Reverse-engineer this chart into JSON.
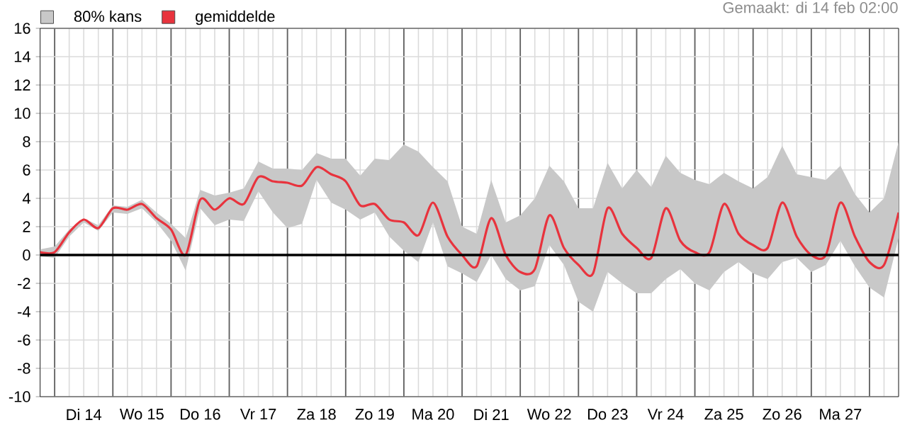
{
  "chart_data": {
    "type": "line",
    "annotations": [
      "Gemaakt: di 14 feb 02:00"
    ],
    "categories": [
      null,
      null,
      null,
      "Di 14",
      null,
      null,
      null,
      "Wo 15",
      null,
      null,
      null,
      "Do 16",
      null,
      null,
      null,
      "Vr 17",
      null,
      null,
      null,
      "Za 18",
      null,
      null,
      null,
      "Zo 19",
      null,
      null,
      null,
      "Ma 20",
      null,
      null,
      null,
      "Di 21",
      null,
      null,
      null,
      "Wo 22",
      null,
      null,
      null,
      "Do 23",
      null,
      null,
      null,
      "Vr 24",
      null,
      null,
      null,
      "Za 25",
      null,
      null,
      null,
      "Zo 26",
      null,
      null,
      null,
      "Ma 27",
      null,
      null,
      null,
      null
    ],
    "ylim": [
      -10,
      16
    ],
    "yticks": [
      -10,
      -8,
      -6,
      -4,
      -2,
      0,
      2,
      4,
      6,
      8,
      10,
      12,
      14,
      16
    ],
    "grid": true,
    "legend": "top left",
    "marker": "none",
    "ref_lines": [
      {
        "axis": "y",
        "value": 0,
        "color": "#000000"
      }
    ],
    "series": [
      {
        "name": "80% kans",
        "type": "area",
        "color": "#c8c8c8",
        "values": [
          null,
          null,
          null,
          null,
          null,
          null,
          null,
          null,
          null,
          null,
          null,
          null,
          null,
          null,
          null,
          null,
          null,
          null,
          null,
          null,
          null,
          null,
          null,
          null,
          null,
          null,
          null,
          null,
          null,
          null,
          null,
          null,
          null,
          null,
          null,
          null,
          null,
          null,
          null,
          null,
          null,
          null,
          null,
          null,
          null,
          null,
          null,
          null,
          null,
          null,
          null,
          null,
          null,
          null,
          null,
          null,
          null,
          null,
          null,
          null
        ],
        "lower": [
          -0.1,
          -0.2,
          1.3,
          2.3,
          1.7,
          3.0,
          2.9,
          3.3,
          2.3,
          1.0,
          -1.1,
          3.3,
          2.1,
          2.5,
          2.4,
          4.5,
          3.0,
          1.9,
          2.2,
          5.3,
          3.7,
          3.2,
          2.5,
          3.0,
          1.3,
          0.3,
          -0.5,
          2.3,
          -0.8,
          -1.3,
          -1.9,
          0.0,
          -1.7,
          -2.5,
          -2.2,
          0.7,
          -0.7,
          -3.3,
          -4.0,
          -1.2,
          -2.0,
          -2.7,
          -2.7,
          -1.7,
          -1.0,
          -2.0,
          -2.5,
          -1.2,
          -0.5,
          -1.3,
          -1.7,
          -0.5,
          -0.2,
          -1.2,
          -0.7,
          1.0,
          -0.8,
          -2.3,
          -3.0,
          1.2
        ],
        "upper": [
          0.4,
          0.6,
          1.8,
          2.6,
          2.1,
          3.5,
          3.4,
          3.9,
          3.0,
          2.2,
          1.2,
          4.6,
          4.2,
          4.4,
          4.7,
          6.6,
          6.1,
          6.1,
          6.0,
          7.2,
          6.8,
          6.8,
          5.6,
          6.8,
          6.7,
          7.8,
          7.3,
          6.2,
          5.2,
          2.0,
          1.5,
          5.3,
          2.3,
          2.8,
          4.0,
          6.3,
          5.2,
          3.3,
          3.3,
          6.5,
          4.7,
          6.0,
          4.8,
          7.0,
          5.8,
          5.3,
          5.0,
          5.8,
          5.2,
          4.7,
          5.5,
          7.7,
          5.7,
          5.5,
          5.3,
          6.3,
          4.3,
          3.0,
          4.0,
          8.0
        ]
      },
      {
        "name": "gemiddelde",
        "color": "#e8333d",
        "values": [
          0.2,
          0.2,
          1.6,
          2.5,
          1.9,
          3.3,
          3.2,
          3.6,
          2.6,
          1.8,
          0.0,
          3.9,
          3.2,
          4.0,
          3.6,
          5.5,
          5.2,
          5.1,
          4.9,
          6.2,
          5.7,
          5.2,
          3.5,
          3.6,
          2.5,
          2.3,
          1.4,
          3.7,
          1.3,
          0.0,
          -0.8,
          2.6,
          0.0,
          -1.2,
          -1.0,
          2.8,
          0.5,
          -0.7,
          -1.3,
          3.3,
          1.5,
          0.5,
          -0.2,
          3.3,
          1.0,
          0.2,
          0.2,
          3.6,
          1.5,
          0.7,
          0.5,
          3.7,
          1.3,
          0.0,
          0.0,
          3.7,
          1.3,
          -0.5,
          -0.7,
          3.0
        ]
      }
    ]
  }
}
